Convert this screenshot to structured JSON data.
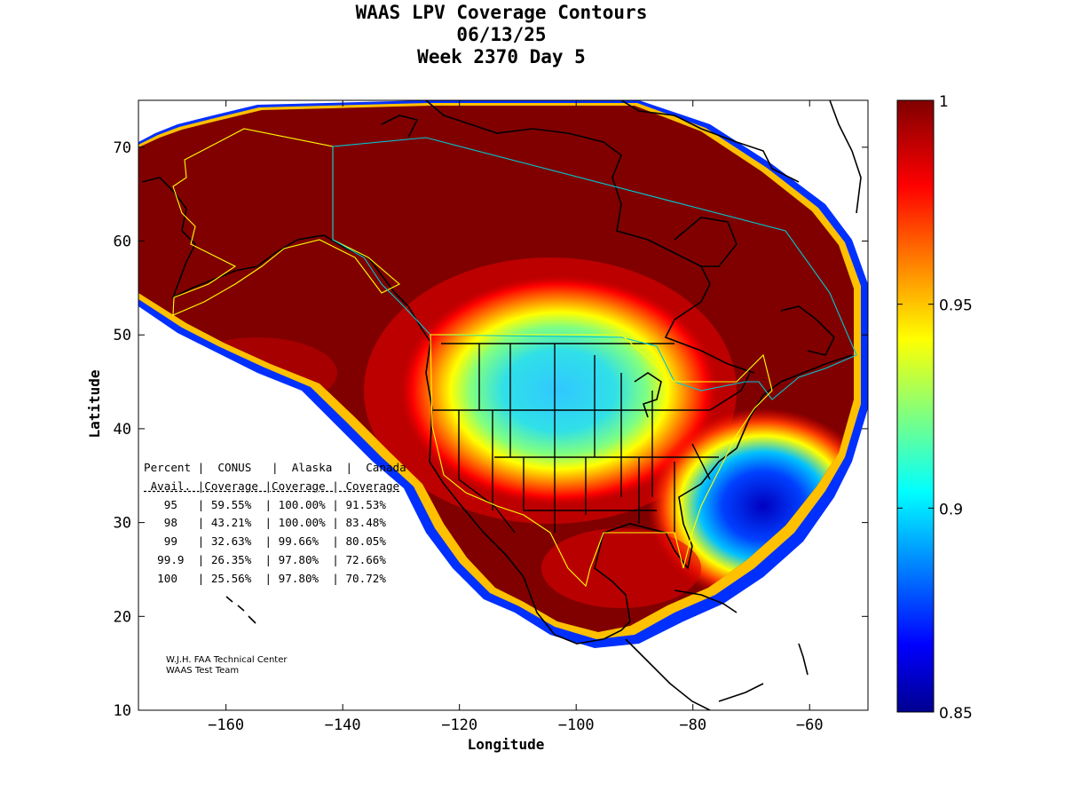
{
  "title_lines": [
    "WAAS LPV Coverage Contours",
    "06/13/25",
    "Week 2370 Day 5"
  ],
  "credit_lines": [
    "W.J.H. FAA Technical Center",
    "WAAS Test Team"
  ],
  "stats_table": {
    "header1": [
      "Percent",
      "CONUS",
      "Alaska",
      "Canada"
    ],
    "header2": [
      "Avail.",
      "Coverage",
      "Coverage",
      "Coverage"
    ],
    "rows": [
      [
        "95",
        "59.55%",
        "100.00%",
        "91.53%"
      ],
      [
        "98",
        "43.21%",
        "100.00%",
        "83.48%"
      ],
      [
        "99",
        "32.63%",
        "99.66%",
        "80.05%"
      ],
      [
        "99.9",
        "26.35%",
        "97.80%",
        "72.66%"
      ],
      [
        "100",
        "25.56%",
        "97.80%",
        "70.72%"
      ]
    ]
  },
  "chart_data": {
    "type": "heatmap",
    "title": "WAAS LPV Coverage Contours",
    "subtitle": [
      "06/13/25",
      "Week 2370 Day 5"
    ],
    "xlabel": "Longitude",
    "ylabel": "Latitude",
    "xlim": [
      -175,
      -50
    ],
    "ylim": [
      10,
      75
    ],
    "xticks": [
      -160,
      -140,
      -120,
      -100,
      -80,
      -60
    ],
    "yticks": [
      10,
      20,
      30,
      40,
      50,
      60,
      70
    ],
    "colorbar": {
      "range": [
        0.85,
        1
      ],
      "ticks": [
        0.85,
        0.9,
        0.95,
        1
      ],
      "tick_labels": [
        "0.85",
        "0.9",
        "0.95",
        "1"
      ],
      "colormap": "jet"
    },
    "coverage_regions": [
      {
        "name": "high-availability",
        "value": 1.0
      },
      {
        "name": "central-conus-minimum",
        "value": 0.91,
        "center": [
          -102,
          46
        ]
      },
      {
        "name": "atlantic-low",
        "value": 0.86,
        "center": [
          -67,
          28
        ]
      }
    ],
    "colors": {
      "high": "#800000",
      "low": "#00008f",
      "mid": "#00ffff",
      "boundary_yellow": "#ffff00",
      "boundary_cyan": "#00c8d0"
    }
  }
}
